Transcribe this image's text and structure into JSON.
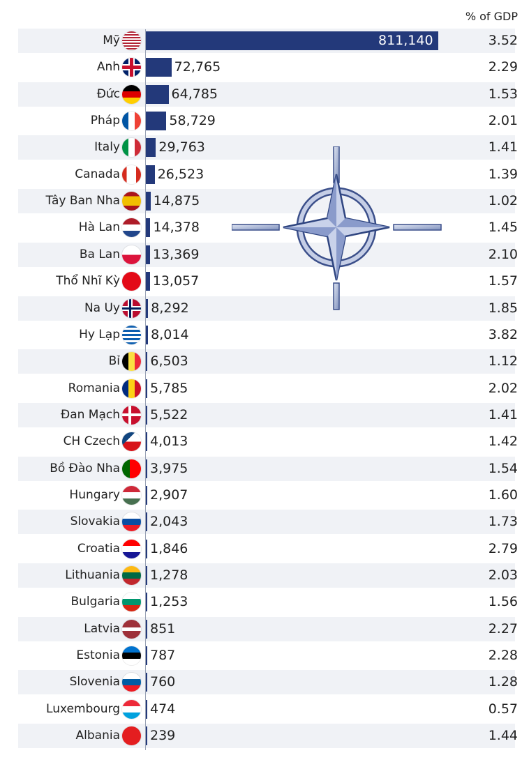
{
  "header": {
    "gdp_label": "% of GDP"
  },
  "chart_data": {
    "type": "bar",
    "orientation": "horizontal",
    "xlabel": "",
    "ylabel": "",
    "xlim": [
      0,
      811140
    ],
    "bar_color": "#23397a",
    "categories": [
      "Mỹ",
      "Anh",
      "Đức",
      "Pháp",
      "Italy",
      "Canada",
      "Tây Ban Nha",
      "Hà Lan",
      "Ba Lan",
      "Thổ Nhĩ Kỳ",
      "Na Uy",
      "Hy Lạp",
      "Bỉ",
      "Romania",
      "Đan Mạch",
      "CH Czech",
      "Bồ Đào Nha",
      "Hungary",
      "Slovakia",
      "Croatia",
      "Lithuania",
      "Bulgaria",
      "Latvia",
      "Estonia",
      "Slovenia",
      "Luxembourg",
      "Albania"
    ],
    "values": [
      811140,
      72765,
      64785,
      58729,
      29763,
      26523,
      14875,
      14378,
      13369,
      13057,
      8292,
      8014,
      6503,
      5785,
      5522,
      4013,
      3975,
      2907,
      2043,
      1846,
      1278,
      1253,
      851,
      787,
      760,
      474,
      239
    ],
    "value_labels": [
      "811,140",
      "72,765",
      "64,785",
      "58,729",
      "29,763",
      "26,523",
      "14,875",
      "14,378",
      "13,369",
      "13,057",
      "8,292",
      "8,014",
      "6,503",
      "5,785",
      "5,522",
      "4,013",
      "3,975",
      "2,907",
      "2,043",
      "1,846",
      "1,278",
      "1,253",
      "851",
      "787",
      "760",
      "474",
      "239"
    ],
    "gdp_percent": [
      "3.52",
      "2.29",
      "1.53",
      "2.01",
      "1.41",
      "1.39",
      "1.02",
      "1.45",
      "2.10",
      "1.57",
      "1.85",
      "3.82",
      "1.12",
      "2.02",
      "1.41",
      "1.42",
      "1.54",
      "1.60",
      "1.73",
      "2.79",
      "2.03",
      "1.56",
      "2.27",
      "2.28",
      "1.28",
      "0.57",
      "1.44"
    ],
    "flags": [
      "us-flag-icon",
      "uk-flag-icon",
      "germany-flag-icon",
      "france-flag-icon",
      "italy-flag-icon",
      "canada-flag-icon",
      "spain-flag-icon",
      "netherlands-flag-icon",
      "poland-flag-icon",
      "turkey-flag-icon",
      "norway-flag-icon",
      "greece-flag-icon",
      "belgium-flag-icon",
      "romania-flag-icon",
      "denmark-flag-icon",
      "czech-flag-icon",
      "portugal-flag-icon",
      "hungary-flag-icon",
      "slovakia-flag-icon",
      "croatia-flag-icon",
      "lithuania-flag-icon",
      "bulgaria-flag-icon",
      "latvia-flag-icon",
      "estonia-flag-icon",
      "slovenia-flag-icon",
      "luxembourg-flag-icon",
      "albania-flag-icon"
    ],
    "watermark": "nato-compass-logo"
  }
}
